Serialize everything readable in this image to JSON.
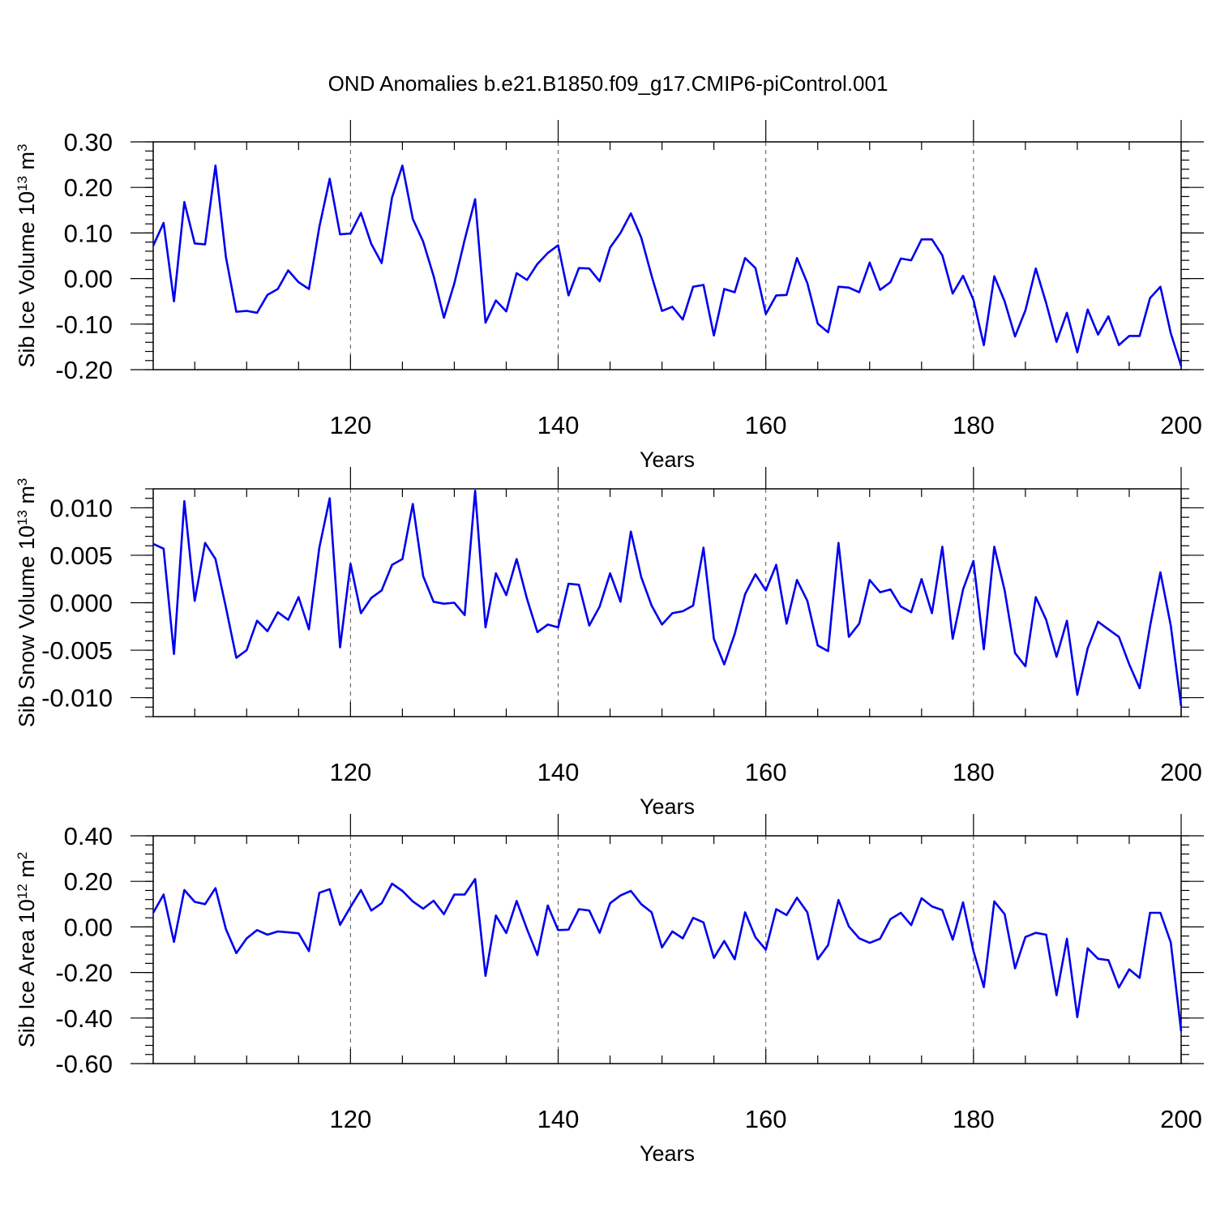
{
  "title": "OND Anomalies b.e21.B1850.f09_g17.CMIP6-piControl.001",
  "series_color": "#0000ee",
  "chart_data": [
    {
      "type": "line",
      "ylabel_main": "Sib Ice Volume 10",
      "ylabel_exp": "13",
      "ylabel_unit": " m",
      "ylabel_unit_exp": "3",
      "xlabel": "Years",
      "xlim": [
        101,
        200
      ],
      "ylim": [
        -0.2,
        0.3
      ],
      "xticks": [
        120,
        140,
        160,
        180,
        200
      ],
      "xtick_labels": [
        "120",
        "140",
        "160",
        "180",
        "200"
      ],
      "yticks": [
        -0.2,
        -0.1,
        0.0,
        0.1,
        0.2,
        0.3
      ],
      "ytick_labels": [
        "-0.20",
        "-0.10",
        "0.00",
        "0.10",
        "0.20",
        "0.30"
      ],
      "grid": "dashed vertical lines at major x ticks",
      "x": [
        101,
        102,
        103,
        104,
        105,
        106,
        107,
        108,
        109,
        110,
        111,
        112,
        113,
        114,
        115,
        116,
        117,
        118,
        119,
        120,
        121,
        122,
        123,
        124,
        125,
        126,
        127,
        128,
        129,
        130,
        131,
        132,
        133,
        134,
        135,
        136,
        137,
        138,
        139,
        140,
        141,
        142,
        143,
        144,
        145,
        146,
        147,
        148,
        149,
        150,
        151,
        152,
        153,
        154,
        155,
        156,
        157,
        158,
        159,
        160,
        161,
        162,
        163,
        164,
        165,
        166,
        167,
        168,
        169,
        170,
        171,
        172,
        173,
        174,
        175,
        176,
        177,
        178,
        179,
        180,
        181,
        182,
        183,
        184,
        185,
        186,
        187,
        188,
        189,
        190,
        191,
        192,
        193,
        194,
        195,
        196,
        197,
        198,
        199,
        200
      ],
      "values": [
        0.072,
        0.122,
        -0.05,
        0.168,
        0.077,
        0.075,
        0.248,
        0.047,
        -0.073,
        -0.071,
        -0.075,
        -0.036,
        -0.023,
        0.018,
        -0.008,
        -0.023,
        0.113,
        0.219,
        0.097,
        0.099,
        0.144,
        0.076,
        0.034,
        0.178,
        0.248,
        0.131,
        0.081,
        0.006,
        -0.086,
        -0.011,
        0.085,
        0.174,
        -0.097,
        -0.048,
        -0.072,
        0.012,
        -0.003,
        0.032,
        0.056,
        0.073,
        -0.037,
        0.023,
        0.022,
        -0.006,
        0.068,
        0.1,
        0.143,
        0.09,
        0.006,
        -0.071,
        -0.062,
        -0.09,
        -0.018,
        -0.014,
        -0.125,
        -0.023,
        -0.03,
        0.045,
        0.023,
        -0.078,
        -0.037,
        -0.036,
        0.045,
        -0.01,
        -0.099,
        -0.118,
        -0.018,
        -0.02,
        -0.03,
        0.035,
        -0.025,
        -0.008,
        0.044,
        0.04,
        0.086,
        0.086,
        0.051,
        -0.033,
        0.006,
        -0.047,
        -0.146,
        0.005,
        -0.05,
        -0.127,
        -0.07,
        0.022,
        -0.054,
        -0.139,
        -0.075,
        -0.162,
        -0.068,
        -0.123,
        -0.083,
        -0.146,
        -0.126,
        -0.126,
        -0.043,
        -0.018,
        -0.12,
        -0.192
      ]
    },
    {
      "type": "line",
      "ylabel_main": "Sib Snow Volume 10",
      "ylabel_exp": "13",
      "ylabel_unit": " m",
      "ylabel_unit_exp": "3",
      "xlabel": "Years",
      "xlim": [
        101,
        200
      ],
      "ylim": [
        -0.012,
        0.012
      ],
      "xticks": [
        120,
        140,
        160,
        180,
        200
      ],
      "xtick_labels": [
        "120",
        "140",
        "160",
        "180",
        "200"
      ],
      "yticks": [
        -0.01,
        -0.005,
        0.0,
        0.005,
        0.01
      ],
      "ytick_labels": [
        "-0.010",
        "-0.005",
        "0.000",
        "0.005",
        "0.010"
      ],
      "grid": "dashed vertical lines at major x ticks",
      "x": [
        101,
        102,
        103,
        104,
        105,
        106,
        107,
        108,
        109,
        110,
        111,
        112,
        113,
        114,
        115,
        116,
        117,
        118,
        119,
        120,
        121,
        122,
        123,
        124,
        125,
        126,
        127,
        128,
        129,
        130,
        131,
        132,
        133,
        134,
        135,
        136,
        137,
        138,
        139,
        140,
        141,
        142,
        143,
        144,
        145,
        146,
        147,
        148,
        149,
        150,
        151,
        152,
        153,
        154,
        155,
        156,
        157,
        158,
        159,
        160,
        161,
        162,
        163,
        164,
        165,
        166,
        167,
        168,
        169,
        170,
        171,
        172,
        173,
        174,
        175,
        176,
        177,
        178,
        179,
        180,
        181,
        182,
        183,
        184,
        185,
        186,
        187,
        188,
        189,
        190,
        191,
        192,
        193,
        194,
        195,
        196,
        197,
        198,
        199,
        200
      ],
      "values": [
        0.0062,
        0.0057,
        -0.0054,
        0.0107,
        0.0002,
        0.0063,
        0.0046,
        -0.0005,
        -0.0058,
        -0.005,
        -0.0019,
        -0.003,
        -0.001,
        -0.0018,
        0.0006,
        -0.0028,
        0.0058,
        0.011,
        -0.0047,
        0.0041,
        -0.0011,
        0.0005,
        0.0013,
        0.004,
        0.0046,
        0.0104,
        0.0028,
        0.0001,
        -0.0001,
        0.0,
        -0.0013,
        0.0118,
        -0.0026,
        0.0031,
        0.0008,
        0.0046,
        0.0004,
        -0.0031,
        -0.0023,
        -0.0026,
        0.002,
        0.0019,
        -0.0024,
        -0.0004,
        0.0031,
        0.0001,
        0.0075,
        0.0027,
        -0.0003,
        -0.0023,
        -0.0011,
        -0.0009,
        -0.0003,
        0.0058,
        -0.0038,
        -0.0065,
        -0.0033,
        0.0009,
        0.003,
        0.0013,
        0.004,
        -0.0022,
        0.0024,
        0.0002,
        -0.0045,
        -0.0051,
        0.0063,
        -0.0036,
        -0.0022,
        0.0024,
        0.0011,
        0.0014,
        -0.0004,
        -0.001,
        0.0025,
        -0.0011,
        0.0059,
        -0.0038,
        0.0014,
        0.0044,
        -0.0049,
        0.0059,
        0.0013,
        -0.0053,
        -0.0067,
        0.0006,
        -0.0018,
        -0.0057,
        -0.0019,
        -0.0097,
        -0.0048,
        -0.002,
        -0.0028,
        -0.0036,
        -0.0065,
        -0.009,
        -0.0025,
        0.0032,
        -0.0024,
        -0.0109
      ]
    },
    {
      "type": "line",
      "ylabel_main": "Sib Ice Area 10",
      "ylabel_exp": "12",
      "ylabel_unit": " m",
      "ylabel_unit_exp": "2",
      "xlabel": "Years",
      "xlim": [
        101,
        200
      ],
      "ylim": [
        -0.6,
        0.4
      ],
      "xticks": [
        120,
        140,
        160,
        180,
        200
      ],
      "xtick_labels": [
        "120",
        "140",
        "160",
        "180",
        "200"
      ],
      "yticks": [
        -0.6,
        -0.4,
        -0.2,
        0.0,
        0.2,
        0.4
      ],
      "ytick_labels": [
        "-0.60",
        "-0.40",
        "-0.20",
        "0.00",
        "0.20",
        "0.40"
      ],
      "grid": "dashed vertical lines at major x ticks",
      "x": [
        101,
        102,
        103,
        104,
        105,
        106,
        107,
        108,
        109,
        110,
        111,
        112,
        113,
        114,
        115,
        116,
        117,
        118,
        119,
        120,
        121,
        122,
        123,
        124,
        125,
        126,
        127,
        128,
        129,
        130,
        131,
        132,
        133,
        134,
        135,
        136,
        137,
        138,
        139,
        140,
        141,
        142,
        143,
        144,
        145,
        146,
        147,
        148,
        149,
        150,
        151,
        152,
        153,
        154,
        155,
        156,
        157,
        158,
        159,
        160,
        161,
        162,
        163,
        164,
        165,
        166,
        167,
        168,
        169,
        170,
        171,
        172,
        173,
        174,
        175,
        176,
        177,
        178,
        179,
        180,
        181,
        182,
        183,
        184,
        185,
        186,
        187,
        188,
        189,
        190,
        191,
        192,
        193,
        194,
        195,
        196,
        197,
        198,
        199,
        200
      ],
      "values": [
        0.062,
        0.142,
        -0.066,
        0.162,
        0.11,
        0.1,
        0.17,
        -0.01,
        -0.115,
        -0.05,
        -0.014,
        -0.034,
        -0.02,
        -0.024,
        -0.028,
        -0.106,
        0.15,
        0.166,
        0.009,
        0.088,
        0.162,
        0.072,
        0.104,
        0.19,
        0.158,
        0.112,
        0.08,
        0.115,
        0.056,
        0.142,
        0.142,
        0.21,
        -0.215,
        0.05,
        -0.027,
        0.114,
        -0.01,
        -0.124,
        0.094,
        -0.014,
        -0.012,
        0.078,
        0.072,
        -0.026,
        0.104,
        0.138,
        0.158,
        0.1,
        0.064,
        -0.09,
        -0.02,
        -0.05,
        0.04,
        0.02,
        -0.136,
        -0.062,
        -0.142,
        0.064,
        -0.046,
        -0.1,
        0.078,
        0.052,
        0.128,
        0.064,
        -0.142,
        -0.08,
        0.118,
        0.002,
        -0.05,
        -0.07,
        -0.052,
        0.034,
        0.062,
        0.008,
        0.126,
        0.09,
        0.074,
        -0.056,
        0.108,
        -0.106,
        -0.264,
        0.112,
        0.056,
        -0.182,
        -0.044,
        -0.026,
        -0.034,
        -0.3,
        -0.052,
        -0.396,
        -0.094,
        -0.14,
        -0.146,
        -0.266,
        -0.186,
        -0.224,
        0.062,
        0.062,
        -0.068,
        -0.458
      ]
    }
  ]
}
